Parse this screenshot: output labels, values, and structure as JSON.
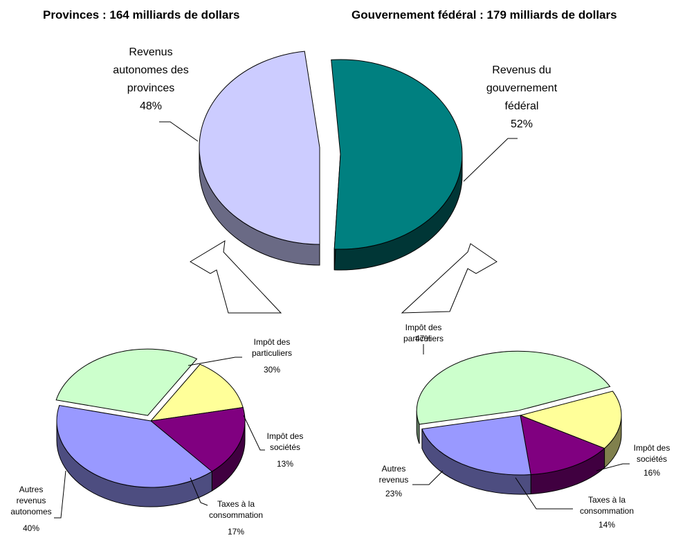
{
  "chart_data": [
    {
      "type": "pie",
      "title": "Provinces : 164 milliards de dollars",
      "slices": [
        {
          "label": [
            "Revenus",
            "autonomes des",
            "provinces"
          ],
          "pct": "48%",
          "value": 48,
          "color": "#ccccff"
        }
      ]
    },
    {
      "type": "pie",
      "title": "Gouvernement fédéral : 179 milliards de dollars",
      "slices": [
        {
          "label": [
            "Revenus du",
            "gouvernement",
            "fédéral"
          ],
          "pct": "52%",
          "value": 52,
          "color": "#008080"
        }
      ]
    },
    {
      "type": "pie",
      "title": "",
      "slices": [
        {
          "label": [
            "Impôt des",
            "particuliers"
          ],
          "pct": "30%",
          "value": 30,
          "color": "#ccffcc"
        },
        {
          "label": [
            "Impôt des",
            "sociétés"
          ],
          "pct": "13%",
          "value": 13,
          "color": "#ffff99"
        },
        {
          "label": [
            "Taxes à la",
            "consommation"
          ],
          "pct": "17%",
          "value": 17,
          "color": "#800080"
        },
        {
          "label": [
            "Autres",
            "revenus",
            "autonomes"
          ],
          "pct": "40%",
          "value": 40,
          "color": "#9999ff"
        }
      ]
    },
    {
      "type": "pie",
      "title": "",
      "slices": [
        {
          "label": [
            "Impôt des",
            "particuliers"
          ],
          "pct": "47%",
          "value": 47,
          "color": "#ccffcc"
        },
        {
          "label": [
            "Impôt des",
            "sociétés"
          ],
          "pct": "16%",
          "value": 16,
          "color": "#ffff99"
        },
        {
          "label": [
            "Taxes à la",
            "consommation"
          ],
          "pct": "14%",
          "value": 14,
          "color": "#800080"
        },
        {
          "label": [
            "Autres",
            "revenus"
          ],
          "pct": "23%",
          "value": 23,
          "color": "#9999ff"
        }
      ]
    }
  ],
  "colors": {
    "provinces_top": "#ccccff",
    "federal_top": "#008080",
    "particuliers": "#ccffcc",
    "societes": "#ffff99",
    "consommation": "#800080",
    "autres": "#9999ff"
  }
}
